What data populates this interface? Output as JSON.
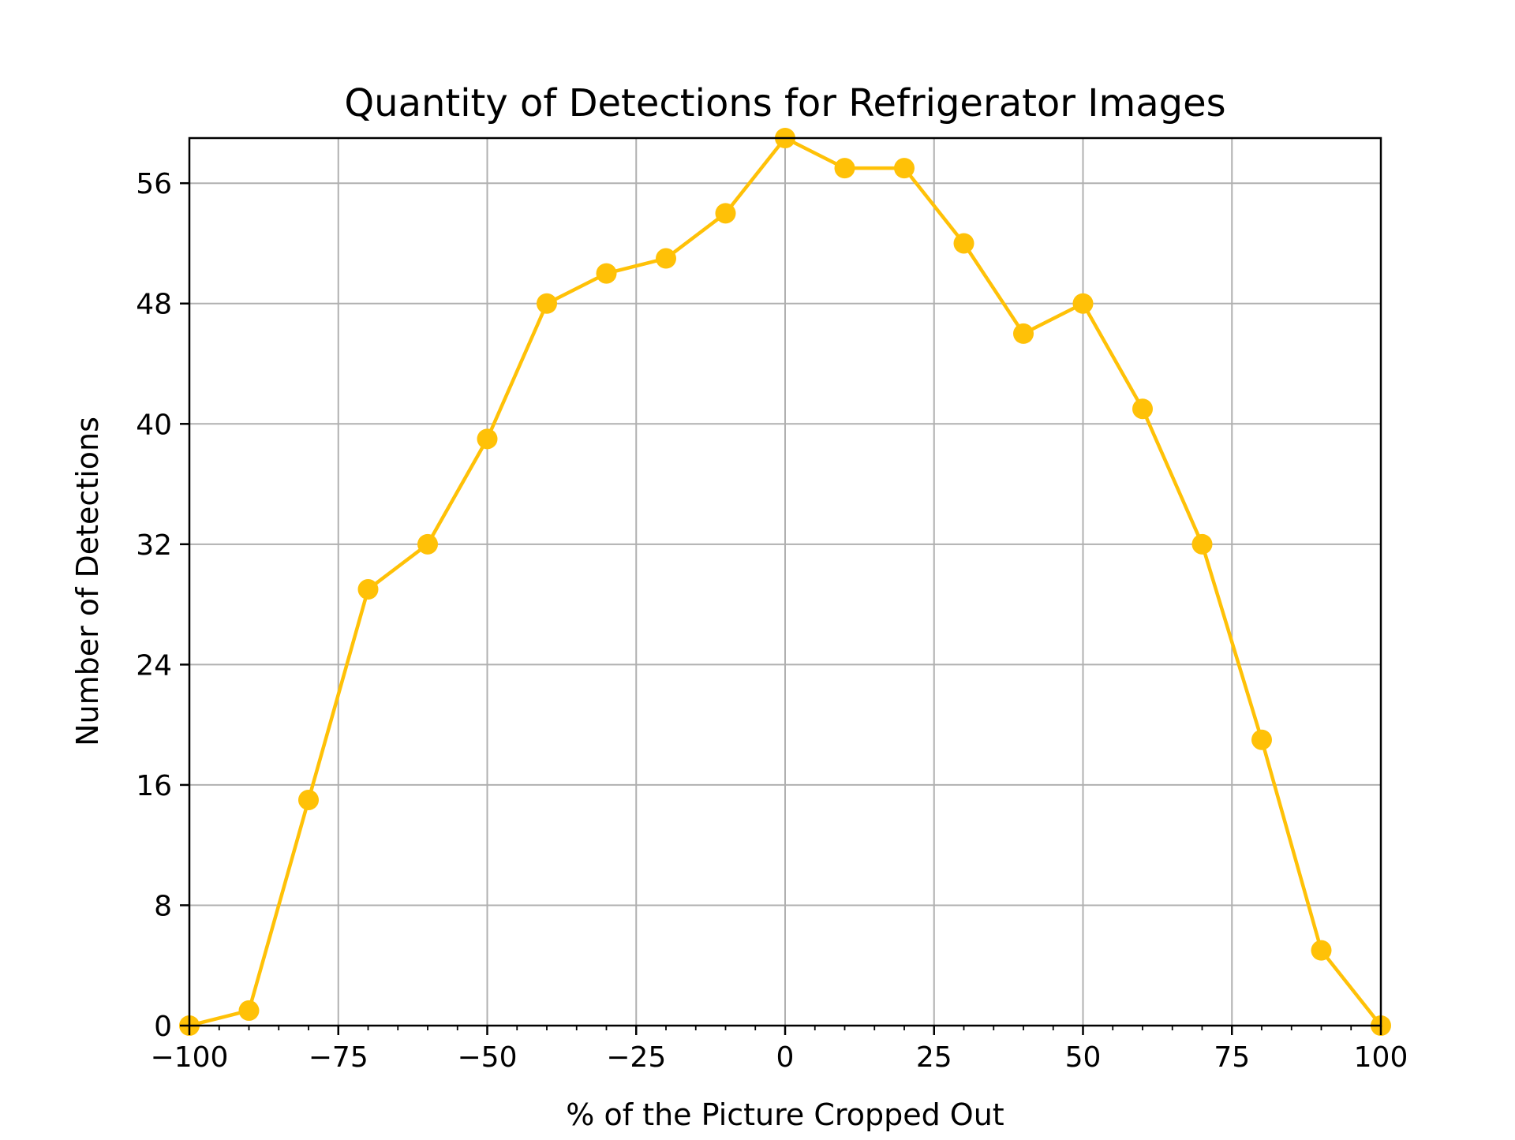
{
  "chart_data": {
    "type": "line",
    "title": "Quantity of Detections for Refrigerator Images",
    "xlabel": "% of the Picture Cropped Out",
    "ylabel": "Number of Detections",
    "xlim": [
      -100,
      100
    ],
    "ylim": [
      0,
      59
    ],
    "grid": true,
    "series_color": "#FFC107",
    "x_ticks": [
      -100,
      -75,
      -50,
      -25,
      0,
      25,
      50,
      75,
      100
    ],
    "x_tick_labels": [
      "−100",
      "−75",
      "−50",
      "−25",
      "0",
      "25",
      "50",
      "75",
      "100"
    ],
    "y_ticks": [
      0,
      8,
      16,
      24,
      32,
      40,
      48,
      56
    ],
    "y_tick_labels": [
      "0",
      "8",
      "16",
      "24",
      "32",
      "40",
      "48",
      "56"
    ],
    "series": [
      {
        "x": [
          -100,
          -90,
          -80,
          -70,
          -60,
          -50,
          -40,
          -30,
          -20,
          -10,
          0,
          10,
          20,
          30,
          40,
          50,
          60,
          70,
          80,
          90,
          100
        ],
        "values": [
          0,
          1,
          15,
          29,
          32,
          39,
          48,
          50,
          51,
          54,
          59,
          57,
          57,
          52,
          46,
          48,
          41,
          32,
          19,
          5,
          0
        ]
      }
    ]
  }
}
